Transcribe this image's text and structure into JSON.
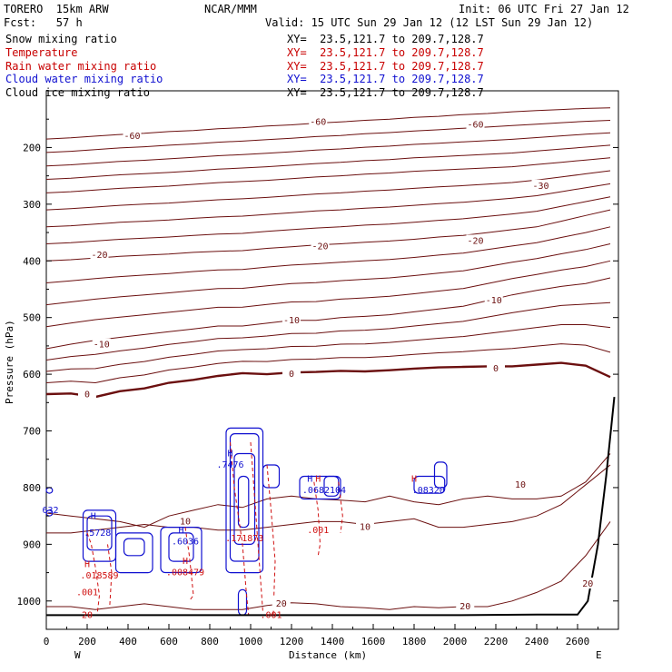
{
  "header": {
    "model": "TORERO  15km ARW",
    "fcst": "Fcst:   57 h",
    "center": "NCAR/MMM",
    "init": "Init: 06 UTC Fri 27 Jan 12",
    "valid": "Valid: 15 UTC Sun 29 Jan 12 (12 LST Sun 29 Jan 12)"
  },
  "fields": [
    {
      "name": "Snow mixing ratio",
      "xy": "XY=  23.5,121.7 to 209.7,128.7",
      "color": "#000000"
    },
    {
      "name": "Temperature",
      "xy": "XY=  23.5,121.7 to 209.7,128.7",
      "color": "#c80000"
    },
    {
      "name": "Rain water mixing ratio",
      "xy": "XY=  23.5,121.7 to 209.7,128.7",
      "color": "#c80000"
    },
    {
      "name": "Cloud water mixing ratio",
      "xy": "XY=  23.5,121.7 to 209.7,128.7",
      "color": "#1010d0"
    },
    {
      "name": "Cloud ice mixing ratio",
      "xy": "XY=  23.5,121.7 to 209.7,128.7",
      "color": "#000000"
    }
  ],
  "colors": {
    "temperature": "#6b0f0f",
    "rain": "#d01010",
    "cloud": "#1010d0",
    "terrain": "#000000"
  },
  "chart_data": {
    "type": "line",
    "xlabel": "Distance (km)",
    "ylabel": "Pressure (hPa)",
    "xlim": [
      0,
      2800
    ],
    "ylim": [
      1050,
      100
    ],
    "x_ticks": [
      0,
      200,
      400,
      600,
      800,
      1000,
      1200,
      1400,
      1600,
      1800,
      2000,
      2200,
      2400,
      2600
    ],
    "y_ticks": [
      200,
      300,
      400,
      500,
      600,
      700,
      800,
      900,
      1000
    ],
    "endpoints": [
      "W",
      "E"
    ],
    "temperature_contours": [
      {
        "value": 0,
        "label": "0",
        "pressure": [
          635,
          634,
          640,
          630,
          625,
          615,
          610,
          603,
          598,
          600,
          597,
          596,
          594,
          595,
          593,
          590,
          588,
          587,
          586,
          586,
          583,
          580,
          585,
          605
        ]
      },
      {
        "value": -10,
        "label": "-10",
        "pressure": [
          555,
          547,
          540,
          535,
          530,
          525,
          520,
          515,
          515,
          510,
          505,
          505,
          500,
          498,
          495,
          490,
          485,
          480,
          470,
          460,
          452,
          445,
          440,
          430
        ]
      },
      {
        "value": -20,
        "label": "-20",
        "pressure": [
          400,
          398,
          395,
          392,
          390,
          388,
          385,
          383,
          382,
          378,
          375,
          372,
          370,
          367,
          365,
          362,
          358,
          355,
          350,
          345,
          340,
          330,
          320,
          310
        ]
      },
      {
        "value": -30,
        "label": "-30",
        "pressure": [
          280,
          278,
          275,
          272,
          270,
          268,
          265,
          262,
          260,
          258,
          255,
          252,
          250,
          247,
          245,
          242,
          240,
          238,
          236,
          234,
          230,
          226,
          222,
          218
        ]
      },
      {
        "value": -60,
        "label": "-60",
        "pressure": [
          185,
          183,
          180,
          177,
          175,
          172,
          170,
          167,
          165,
          162,
          160,
          157,
          155,
          152,
          150,
          147,
          145,
          142,
          140,
          137,
          135,
          133,
          131,
          130
        ]
      }
    ],
    "x_samples": [
      0,
      120,
      240,
      360,
      480,
      600,
      720,
      840,
      960,
      1080,
      1200,
      1320,
      1440,
      1560,
      1680,
      1800,
      1920,
      2040,
      2160,
      2280,
      2400,
      2520,
      2640,
      2760
    ],
    "contour_labels": [
      {
        "text": "-60",
        "x": 420,
        "p": 180
      },
      {
        "text": "-60",
        "x": 1330,
        "p": 155
      },
      {
        "text": "-60",
        "x": 2100,
        "p": 160
      },
      {
        "text": "-30",
        "x": 2420,
        "p": 268
      },
      {
        "text": "-20",
        "x": 260,
        "p": 390
      },
      {
        "text": "-20",
        "x": 1340,
        "p": 375
      },
      {
        "text": "-20",
        "x": 2100,
        "p": 365
      },
      {
        "text": "-10",
        "x": 270,
        "p": 548
      },
      {
        "text": "-10",
        "x": 1200,
        "p": 505
      },
      {
        "text": "-10",
        "x": 2190,
        "p": 470
      },
      {
        "text": "0",
        "x": 200,
        "p": 636
      },
      {
        "text": "0",
        "x": 1200,
        "p": 600
      },
      {
        "text": "0",
        "x": 2200,
        "p": 590
      },
      {
        "text": "10",
        "x": 680,
        "p": 860
      },
      {
        "text": "10",
        "x": 1560,
        "p": 870
      },
      {
        "text": "10",
        "x": 2320,
        "p": 795
      },
      {
        "text": "20",
        "x": 1150,
        "p": 1005
      },
      {
        "text": "20",
        "x": 2050,
        "p": 1010
      },
      {
        "text": "20",
        "x": 2650,
        "p": 970
      }
    ],
    "warm_contours": [
      {
        "value": 10,
        "pressure": [
          845,
          850,
          855,
          860,
          870,
          850,
          840,
          830,
          835,
          820,
          815,
          820,
          822,
          825,
          815,
          825,
          830,
          820,
          815,
          820,
          820,
          815,
          790,
          740
        ]
      },
      {
        "value": 10,
        "pressure": [
          880,
          880,
          875,
          870,
          865,
          870,
          870,
          875,
          875,
          870,
          865,
          860,
          860,
          865,
          860,
          855,
          870,
          870,
          865,
          860,
          850,
          830,
          795,
          760
        ]
      },
      {
        "value": 20,
        "pressure": [
          1010,
          1010,
          1015,
          1010,
          1005,
          1010,
          1015,
          1015,
          1015,
          1008,
          1003,
          1005,
          1010,
          1012,
          1015,
          1010,
          1012,
          1010,
          1010,
          1000,
          985,
          965,
          920,
          860
        ]
      }
    ],
    "terrain": {
      "x": [
        0,
        400,
        800,
        1200,
        1600,
        2000,
        2400,
        2600,
        2650,
        2700,
        2740,
        2780
      ],
      "p": [
        1025,
        1025,
        1025,
        1025,
        1025,
        1025,
        1024,
        1024,
        1000,
        900,
        780,
        640
      ]
    },
    "rain_labels": [
      {
        "text": ".001",
        "x": 200,
        "p": 990
      },
      {
        "text": ".001",
        "x": 1330,
        "p": 880
      },
      {
        "text": ".001",
        "x": 1100,
        "p": 1030
      },
      {
        "text": "20",
        "x": 200,
        "p": 1030
      },
      {
        "text": "H",
        "x": 200,
        "p": 940
      },
      {
        "text": ".018589",
        "x": 260,
        "p": 960
      },
      {
        "text": "H",
        "x": 680,
        "p": 935
      },
      {
        "text": ".008479",
        "x": 680,
        "p": 955
      },
      {
        "text": "H",
        "x": 1330,
        "p": 790
      },
      {
        "text": "H",
        "x": 1800,
        "p": 790
      },
      {
        "text": ".171873",
        "x": 970,
        "p": 895
      }
    ],
    "cloud_labels": [
      {
        "text": "H",
        "x": 230,
        "p": 855
      },
      {
        "text": ".5728",
        "x": 250,
        "p": 885
      },
      {
        "text": "H",
        "x": 660,
        "p": 880
      },
      {
        "text": ".6036",
        "x": 680,
        "p": 900
      },
      {
        "text": "H",
        "x": 900,
        "p": 745
      },
      {
        "text": ".7476",
        "x": 900,
        "p": 765
      },
      {
        "text": "H",
        "x": 1290,
        "p": 790
      },
      {
        "text": ".0682104",
        "x": 1360,
        "p": 810
      },
      {
        "text": ".08320",
        "x": 1870,
        "p": 810
      },
      {
        "text": "632",
        "x": 20,
        "p": 845
      }
    ]
  }
}
